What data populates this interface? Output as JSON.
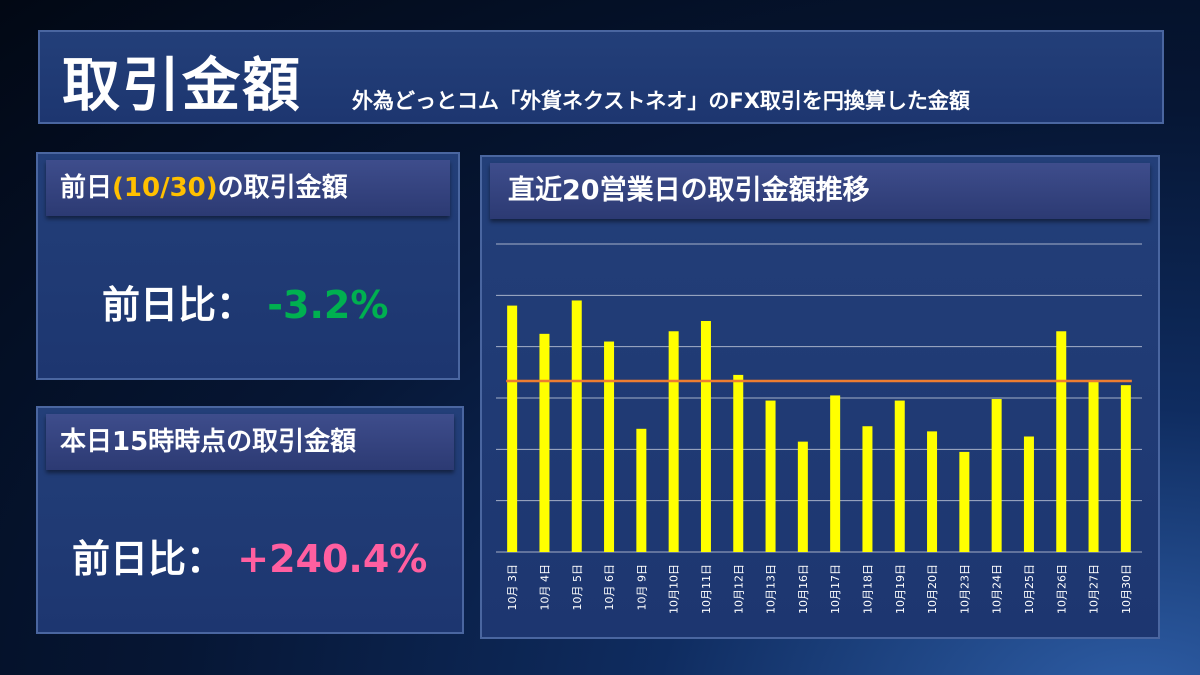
{
  "header": {
    "title": "取引金額",
    "subtitle": "外為どっとコム「外貨ネクストネオ」のFX取引を円換算した金額"
  },
  "prev_day": {
    "title_pre": "前日",
    "title_date": "(10/30)",
    "title_post": "の取引金額",
    "label": "前日比：",
    "value": "-3.2%"
  },
  "today": {
    "title": "本日15時時点の取引金額",
    "label": "前日比：",
    "value": "+240.4%"
  },
  "chart": {
    "title": "直近20営業日の取引金額推移"
  },
  "colors": {
    "bar": "#ffff00",
    "average_line": "#ed7d31",
    "gridline": "#ffffff",
    "negative": "#00b050",
    "positive": "#ff5fa0",
    "date_highlight": "#ffc000"
  },
  "chart_data": {
    "type": "bar",
    "categories": [
      "10月 3日",
      "10月 4日",
      "10月 5日",
      "10月 6日",
      "10月 9日",
      "10月10日",
      "10月11日",
      "10月12日",
      "10月13日",
      "10月16日",
      "10月17日",
      "10月18日",
      "10月19日",
      "10月20日",
      "10月23日",
      "10月24日",
      "10月25日",
      "10月26日",
      "10月27日",
      "10月30日"
    ],
    "values": [
      4.8,
      4.25,
      4.9,
      4.1,
      2.4,
      4.3,
      4.5,
      3.45,
      2.95,
      2.15,
      3.05,
      2.45,
      2.95,
      2.35,
      1.95,
      2.98,
      2.25,
      4.3,
      3.35,
      3.25
    ],
    "average": 3.33,
    "ylim": [
      0,
      6
    ],
    "grid": true,
    "gridlines": 6,
    "xlabel": "",
    "ylabel": ""
  }
}
